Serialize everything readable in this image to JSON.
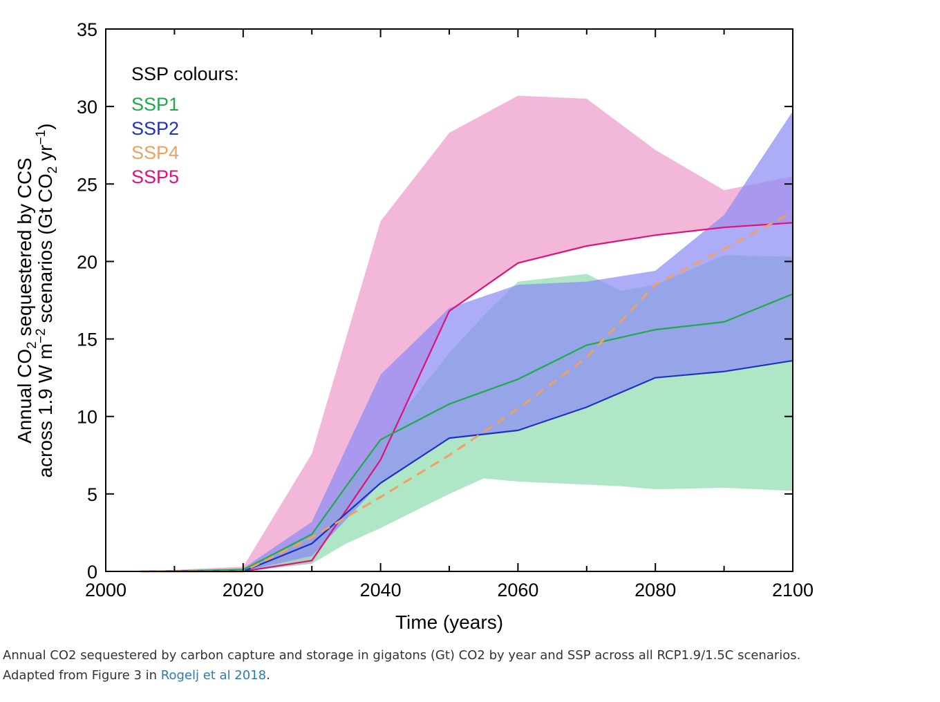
{
  "chart_data": {
    "type": "area",
    "xlabel": "Time (years)",
    "ylabel_line1": "Annual CO2 sequestered by CCS",
    "ylabel_line2": "across 1.9 W m-2 scenarios (Gt CO2 yr-1)",
    "xlim": [
      2000,
      2100
    ],
    "ylim": [
      0,
      35
    ],
    "xticks": [
      2000,
      2020,
      2040,
      2060,
      2080,
      2100
    ],
    "yticks": [
      0,
      5,
      10,
      15,
      20,
      25,
      30,
      35
    ],
    "grid": false,
    "legend": {
      "title": "SSP colours:",
      "placement": "top-left"
    },
    "series": [
      {
        "name": "SSP5",
        "color": "#e0107a",
        "band_color": "#ee9ccb",
        "x": [
          2005,
          2020,
          2030,
          2040,
          2050,
          2060,
          2070,
          2080,
          2090,
          2100
        ],
        "median": [
          0,
          0,
          0.7,
          7.2,
          16.8,
          19.9,
          21.0,
          21.7,
          22.2,
          22.5
        ],
        "upper": [
          0,
          0.3,
          7.6,
          22.6,
          28.3,
          30.7,
          30.5,
          27.2,
          24.6,
          25.5
        ],
        "lower": [
          0,
          0,
          0.5,
          7.2,
          16.8,
          19.9,
          21.0,
          21.7,
          22.2,
          22.5
        ]
      },
      {
        "name": "SSP1",
        "color": "#1faa4a",
        "band_color": "#8fdcb0",
        "x": [
          2005,
          2020,
          2030,
          2035,
          2040,
          2050,
          2055,
          2060,
          2070,
          2075,
          2080,
          2090,
          2100
        ],
        "median": [
          0,
          0.1,
          2.4,
          5.5,
          8.5,
          10.8,
          11.6,
          12.4,
          14.6,
          15.1,
          15.6,
          16.1,
          17.9
        ],
        "upper": [
          0,
          0.2,
          2.5,
          5.5,
          8.5,
          14.1,
          16.5,
          18.7,
          19.2,
          18.1,
          18.5,
          20.4,
          20.3
        ],
        "lower": [
          0,
          0,
          0.5,
          1.8,
          2.8,
          5.0,
          6.0,
          5.8,
          5.6,
          5.5,
          5.3,
          5.4,
          5.2
        ]
      },
      {
        "name": "SSP2",
        "color": "#2030c0",
        "band_color": "#8c8cf4",
        "x": [
          2005,
          2020,
          2030,
          2040,
          2050,
          2060,
          2070,
          2080,
          2090,
          2100
        ],
        "median": [
          0,
          0,
          1.8,
          5.7,
          8.6,
          9.1,
          10.6,
          12.5,
          12.9,
          13.6
        ],
        "upper": [
          0,
          0.2,
          3.2,
          12.7,
          17.0,
          18.5,
          18.7,
          19.4,
          23.0,
          29.7
        ],
        "lower": [
          0,
          0,
          1.0,
          5.7,
          8.6,
          9.1,
          10.6,
          12.5,
          12.9,
          13.6
        ]
      },
      {
        "name": "SSP4",
        "color": "#f0a060",
        "dashed": true,
        "x": [
          2005,
          2020,
          2030,
          2040,
          2050,
          2060,
          2070,
          2080,
          2090,
          2100
        ],
        "median": [
          0,
          0,
          2.2,
          4.8,
          7.5,
          10.5,
          13.8,
          18.5,
          20.8,
          23.2
        ]
      }
    ],
    "legend_order": [
      "SSP1",
      "SSP2",
      "SSP4",
      "SSP5"
    ]
  },
  "caption": {
    "line1": "Annual CO2 sequestered by carbon capture and storage in gigatons (Gt) CO2 by year and SSP across all RCP1.9/1.5C scenarios.",
    "line2_prefix": "Adapted from Figure 3 in ",
    "link_text": "Rogelj et al 2018",
    "line2_suffix": "."
  }
}
